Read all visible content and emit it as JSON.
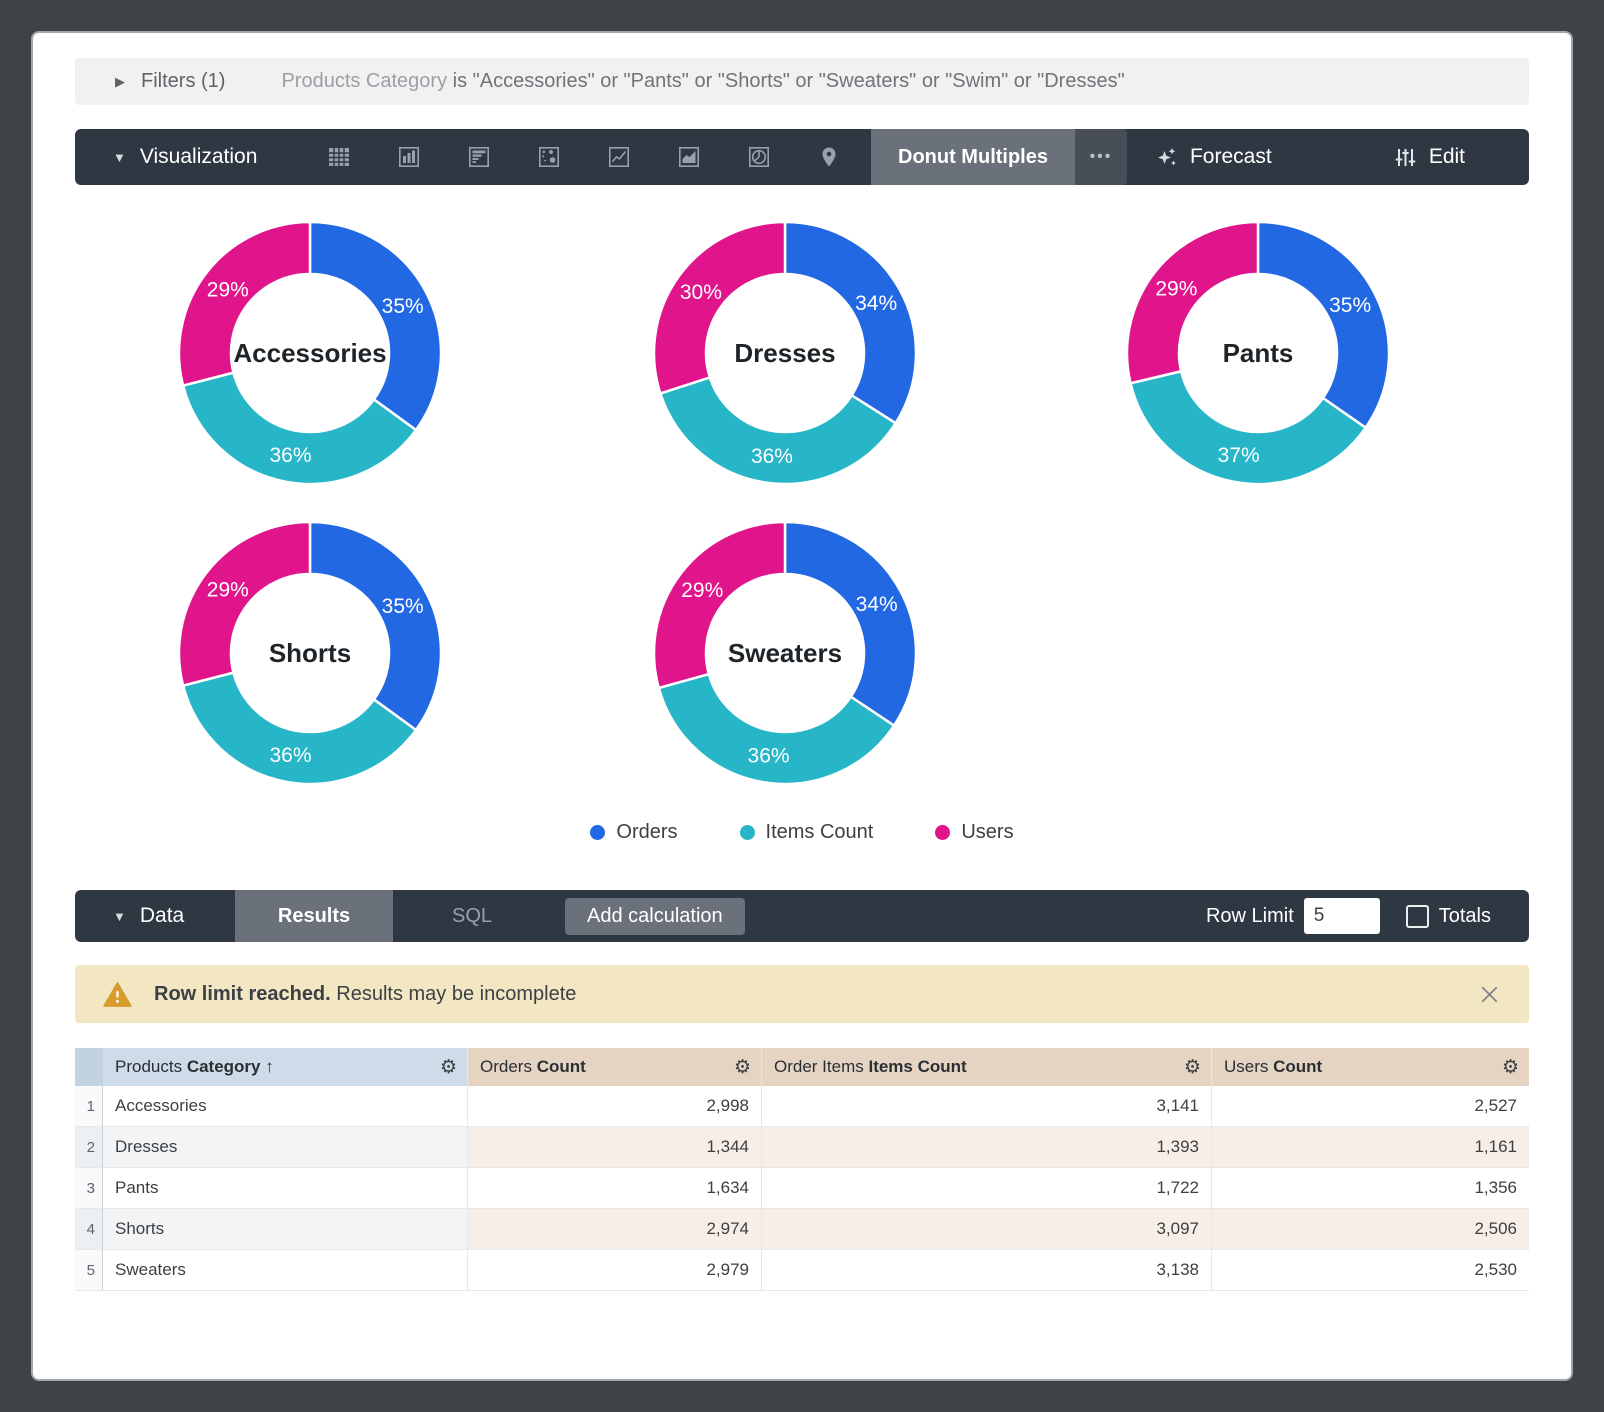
{
  "icons": {
    "caret_down": "▼",
    "caret_right": "▶",
    "gear": "⚙",
    "more": "•••",
    "sort_asc": "↑"
  },
  "filters": {
    "toggle_label": "Filters (1)",
    "description_dim": "Products Category",
    "description_rest": " is \"Accessories\" or \"Pants\" or \"Shorts\" or \"Sweaters\" or \"Swim\" or \"Dresses\""
  },
  "viz_toolbar": {
    "label": "Visualization",
    "chart_types": [
      "table",
      "column",
      "bar",
      "scatter",
      "line",
      "area",
      "pie",
      "map"
    ],
    "active_viz": "Donut Multiples",
    "forecast_label": "Forecast",
    "edit_label": "Edit"
  },
  "chart_data": {
    "type": "pie",
    "variant": "donut-multiples",
    "series_names": [
      "Orders",
      "Items Count",
      "Users"
    ],
    "donuts": [
      {
        "label": "Accessories",
        "percents": [
          35,
          36,
          29
        ]
      },
      {
        "label": "Dresses",
        "percents": [
          34,
          36,
          30
        ]
      },
      {
        "label": "Pants",
        "percents": [
          35,
          37,
          29
        ]
      },
      {
        "label": "Shorts",
        "percents": [
          35,
          36,
          29
        ]
      },
      {
        "label": "Sweaters",
        "percents": [
          34,
          36,
          29
        ]
      }
    ],
    "legend": [
      {
        "label": "Orders",
        "color": "#2268E3"
      },
      {
        "label": "Items Count",
        "color": "#26B6C7"
      },
      {
        "label": "Users",
        "color": "#E0158C"
      }
    ]
  },
  "data_bar": {
    "label": "Data",
    "tabs": [
      {
        "label": "Results",
        "active": true
      },
      {
        "label": "SQL",
        "active": false
      }
    ],
    "add_calculation_label": "Add calculation",
    "row_limit_label": "Row Limit",
    "row_limit_value": "5",
    "totals_label": "Totals",
    "totals_checked": false
  },
  "warning": {
    "bold": "Row limit reached.",
    "text": " Results may be incomplete"
  },
  "table": {
    "headers": [
      {
        "prefix": "Products ",
        "bold": "Category",
        "sort": " ↑",
        "type": "dimension"
      },
      {
        "prefix": "Orders ",
        "bold": "Count",
        "sort": "",
        "type": "measure"
      },
      {
        "prefix": "Order Items ",
        "bold": "Items Count",
        "sort": "",
        "type": "measure"
      },
      {
        "prefix": "Users ",
        "bold": "Count",
        "sort": "",
        "type": "measure"
      }
    ],
    "rows": [
      {
        "num": "1",
        "category": "Accessories",
        "orders": "2,998",
        "items": "3,141",
        "users": "2,527"
      },
      {
        "num": "2",
        "category": "Dresses",
        "orders": "1,344",
        "items": "1,393",
        "users": "1,161"
      },
      {
        "num": "3",
        "category": "Pants",
        "orders": "1,634",
        "items": "1,722",
        "users": "1,356"
      },
      {
        "num": "4",
        "category": "Shorts",
        "orders": "2,974",
        "items": "3,097",
        "users": "2,506"
      },
      {
        "num": "5",
        "category": "Sweaters",
        "orders": "2,979",
        "items": "3,138",
        "users": "2,530"
      }
    ]
  }
}
